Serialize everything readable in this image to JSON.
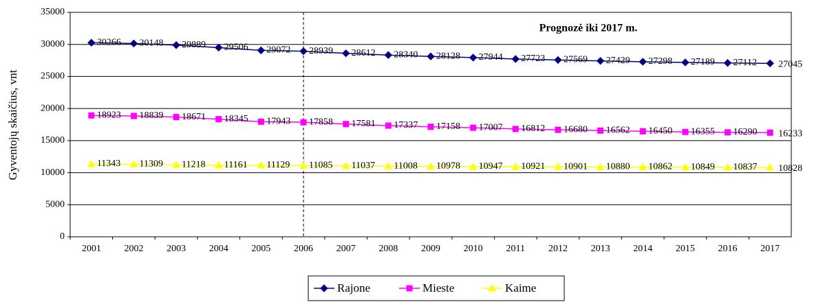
{
  "chart_data": {
    "type": "line",
    "annotation": "Prognozė iki 2017 m.",
    "y_label": "Gyventojų skaičius, vnt",
    "categories": [
      "2001",
      "2002",
      "2003",
      "2004",
      "2005",
      "2006",
      "2007",
      "2008",
      "2009",
      "2010",
      "2011",
      "2012",
      "2013",
      "2014",
      "2015",
      "2016",
      "2017"
    ],
    "series": [
      {
        "name": "Rajone",
        "color": "#000080",
        "marker": "diamond",
        "values": [
          30266,
          30148,
          29889,
          29506,
          29072,
          28939,
          28612,
          28340,
          28128,
          27944,
          27723,
          27569,
          27429,
          27298,
          27189,
          27112,
          27045
        ]
      },
      {
        "name": "Mieste",
        "color": "#ff00ff",
        "marker": "square",
        "values": [
          18923,
          18839,
          18671,
          18345,
          17943,
          17858,
          17581,
          17337,
          17158,
          17007,
          16812,
          16680,
          16562,
          16450,
          16355,
          16290,
          16233
        ]
      },
      {
        "name": "Kaime",
        "color": "#ffff00",
        "marker": "triangle",
        "values": [
          11343,
          11309,
          11218,
          11161,
          11129,
          11085,
          11037,
          11008,
          10978,
          10947,
          10921,
          10901,
          10880,
          10862,
          10849,
          10837,
          10828
        ]
      }
    ],
    "ylim": [
      0,
      35000
    ],
    "yticks": [
      0,
      5000,
      10000,
      15000,
      20000,
      25000,
      30000,
      35000
    ],
    "grid": true,
    "vline": "2006",
    "legend": "bottom"
  }
}
